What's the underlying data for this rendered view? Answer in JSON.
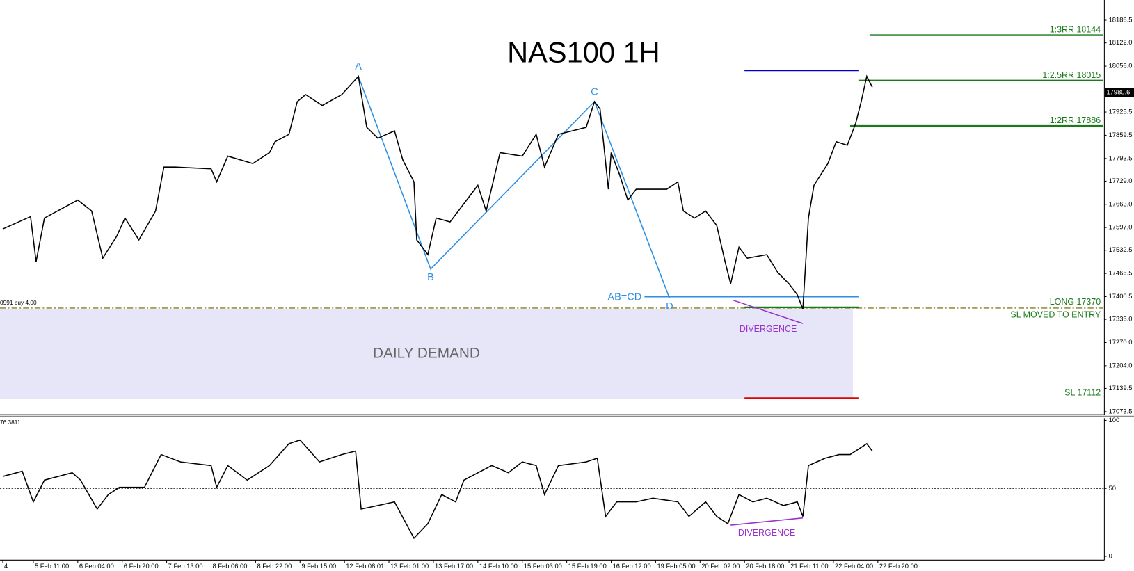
{
  "chart_data": [
    {
      "type": "line",
      "title": "NAS100 1H",
      "color": "#000000",
      "x": [
        -11,
        -1,
        1,
        4,
        16,
        21,
        25,
        30,
        33,
        38,
        44,
        47,
        51,
        64,
        66,
        70,
        79,
        85,
        87,
        92,
        95,
        98,
        104,
        111,
        117,
        120,
        124,
        130,
        133,
        137,
        138,
        142,
        145,
        150,
        155,
        160,
        163,
        168,
        176,
        181,
        184,
        189,
        194,
        199,
        202,
        204,
        207,
        208,
        211,
        214,
        217,
        223,
        228,
        232,
        234,
        238,
        242,
        246,
        249,
        251,
        254,
        257,
        264,
        268,
        272,
        275,
        277,
        279,
        281,
        286,
        289,
        293,
        296,
        298,
        300,
        302
      ],
      "values": [
        17593,
        17628,
        17500,
        17624,
        17675,
        17644,
        17510,
        17572,
        17624,
        17562,
        17644,
        17769,
        17769,
        17764,
        17727,
        17800,
        17779,
        17810,
        17841,
        17862,
        17955,
        17975,
        17944,
        17975,
        18027,
        17882,
        17851,
        17872,
        17789,
        17727,
        17562,
        17520,
        17624,
        17613,
        17665,
        17717,
        17644,
        17810,
        17800,
        17862,
        17769,
        17862,
        17872,
        17882,
        17955,
        17934,
        17706,
        17810,
        17748,
        17675,
        17706,
        17706,
        17706,
        17727,
        17644,
        17624,
        17644,
        17603,
        17500,
        17437,
        17541,
        17510,
        17520,
        17469,
        17437,
        17406,
        17365,
        17624,
        17717,
        17779,
        17841,
        17831,
        17893,
        17955,
        18027,
        17996
      ],
      "xlim": [
        -12,
        385
      ],
      "ylim": [
        17065,
        18244
      ],
      "yticks": [
        18186.5,
        {
          "value": 18122,
          "label": "18122.0"
        },
        {
          "value": 18056,
          "label": "18056.0"
        },
        17925.5,
        17859.5,
        17793.5,
        {
          "value": 17729,
          "label": "17729.0"
        },
        {
          "value": 17663,
          "label": "17663.0"
        },
        {
          "value": 17597,
          "label": "17597.0"
        },
        17532.5,
        17466.5,
        17400.5,
        {
          "value": 17336,
          "label": "17336.0"
        },
        {
          "value": 17270,
          "label": "17270.0"
        },
        {
          "value": 17204,
          "label": "17204.0"
        },
        17139.5,
        17073.5
      ],
      "last_price": 17980.6,
      "zone": {
        "label": "DAILY DEMAND",
        "top": 17365,
        "bottom": 17110,
        "from": -12,
        "to": 295,
        "color": "#e6e6f8"
      },
      "entry": {
        "label": "SL MOVED TO ENTRY",
        "price": 17368,
        "color": "#8b7a22"
      },
      "order_label": "0991 buy 4.00",
      "pattern": {
        "color": "#2b8fe6",
        "points": [
          {
            "label": "A",
            "x": 117,
            "price": 18027
          },
          {
            "label": "B",
            "x": 143,
            "price": 17479
          },
          {
            "label": "C",
            "x": 202,
            "price": 17955
          },
          {
            "label": "D",
            "x": 229,
            "price": 17396
          }
        ]
      },
      "abcd": {
        "label": "AB=CD",
        "price": 17400,
        "from": 220,
        "to": 297,
        "color": "#2b8fe6"
      },
      "levels": [
        {
          "label": "1:3RR 18144",
          "price": 18144,
          "color": "#1a7a1a",
          "from": 301,
          "to": 385
        },
        {
          "label": "1:2.5RR 18015",
          "price": 18015,
          "color": "#1a7a1a",
          "from": 297,
          "to": 385
        },
        {
          "label": "1:2RR 17886",
          "price": 17886,
          "color": "#1a7a1a",
          "from": 294,
          "to": 385
        },
        {
          "label": "LONG 17370",
          "price": 17370,
          "color": "#1a7a1a",
          "from": 256,
          "to": 297
        },
        {
          "label": "SL 17112",
          "price": 17112,
          "color": "#e00000",
          "from": 256,
          "to": 297
        },
        {
          "price": 18044,
          "color": "#0000cc",
          "from": 256,
          "to": 297
        }
      ],
      "divergence": {
        "label": "DIVERGENCE",
        "color": "#9932cc",
        "points": [
          {
            "x": 252,
            "price": 17390
          },
          {
            "x": 277,
            "price": 17324
          }
        ]
      }
    },
    {
      "type": "line",
      "indicator_label": "76.3811",
      "color": "#000000",
      "x": [
        -11,
        -4,
        0,
        4,
        14,
        17,
        23,
        27,
        31,
        40,
        46,
        53,
        64,
        66,
        70,
        77,
        85,
        92,
        96,
        103,
        111,
        116,
        118,
        124,
        130,
        137,
        142,
        147,
        152,
        155,
        160,
        165,
        171,
        176,
        181,
        184,
        189,
        199,
        203,
        206,
        210,
        217,
        223,
        232,
        236,
        242,
        246,
        250,
        254,
        259,
        264,
        270,
        275,
        277,
        279,
        285,
        290,
        294,
        298,
        300,
        302
      ],
      "values": [
        58.8,
        62.6,
        40.1,
        56.1,
        61.5,
        56.1,
        34.8,
        45.5,
        50.8,
        50.8,
        74.9,
        69.5,
        66.8,
        50.8,
        66.8,
        56.1,
        66.8,
        82.9,
        85.6,
        69.5,
        74.9,
        77.5,
        34.8,
        37.4,
        40.1,
        13.4,
        24.1,
        45.5,
        40.1,
        56.1,
        61.5,
        66.8,
        61.5,
        69.5,
        66.8,
        45.5,
        66.8,
        69.5,
        72.2,
        29.4,
        40.1,
        40.1,
        42.8,
        40.1,
        29.4,
        40.1,
        29.4,
        24.1,
        45.5,
        40.1,
        42.8,
        37.4,
        40.1,
        29.4,
        66.8,
        72.2,
        74.9,
        74.9,
        80.2,
        82.9,
        77.5
      ],
      "xlim": [
        -12,
        385
      ],
      "ylim": [
        -2.7,
        101.6
      ],
      "yticks": [
        0,
        50,
        100
      ],
      "level": 50,
      "xticks": [
        {
          "value": -11,
          "label": "4"
        },
        {
          "value": 0,
          "label": "5 Feb 11:00"
        },
        {
          "value": 16,
          "label": "6 Feb 04:00"
        },
        {
          "value": 32,
          "label": "6 Feb 20:00"
        },
        {
          "value": 48,
          "label": "7 Feb 13:00"
        },
        {
          "value": 64,
          "label": "8 Feb 06:00"
        },
        {
          "value": 80,
          "label": "8 Feb 22:00"
        },
        {
          "value": 96,
          "label": "9 Feb 15:00"
        },
        {
          "value": 112,
          "label": "12 Feb 08:01"
        },
        {
          "value": 128,
          "label": "13 Feb 01:00"
        },
        {
          "value": 144,
          "label": "13 Feb 17:00"
        },
        {
          "value": 160,
          "label": "14 Feb 10:00"
        },
        {
          "value": 176,
          "label": "15 Feb 03:00"
        },
        {
          "value": 192,
          "label": "15 Feb 19:00"
        },
        {
          "value": 208,
          "label": "16 Feb 12:00"
        },
        {
          "value": 224,
          "label": "19 Feb 05:00"
        },
        {
          "value": 240,
          "label": "20 Feb 02:00"
        },
        {
          "value": 256,
          "label": "20 Feb 18:00"
        },
        {
          "value": 272,
          "label": "21 Feb 11:00"
        },
        {
          "value": 288,
          "label": "22 Feb 04:00"
        },
        {
          "value": 304,
          "label": "22 Feb 20:00"
        }
      ],
      "divergence": {
        "label": "DIVERGENCE",
        "color": "#9932cc",
        "points": [
          {
            "x": 251,
            "value": 23.0
          },
          {
            "x": 277,
            "value": 28.3
          }
        ]
      }
    }
  ]
}
